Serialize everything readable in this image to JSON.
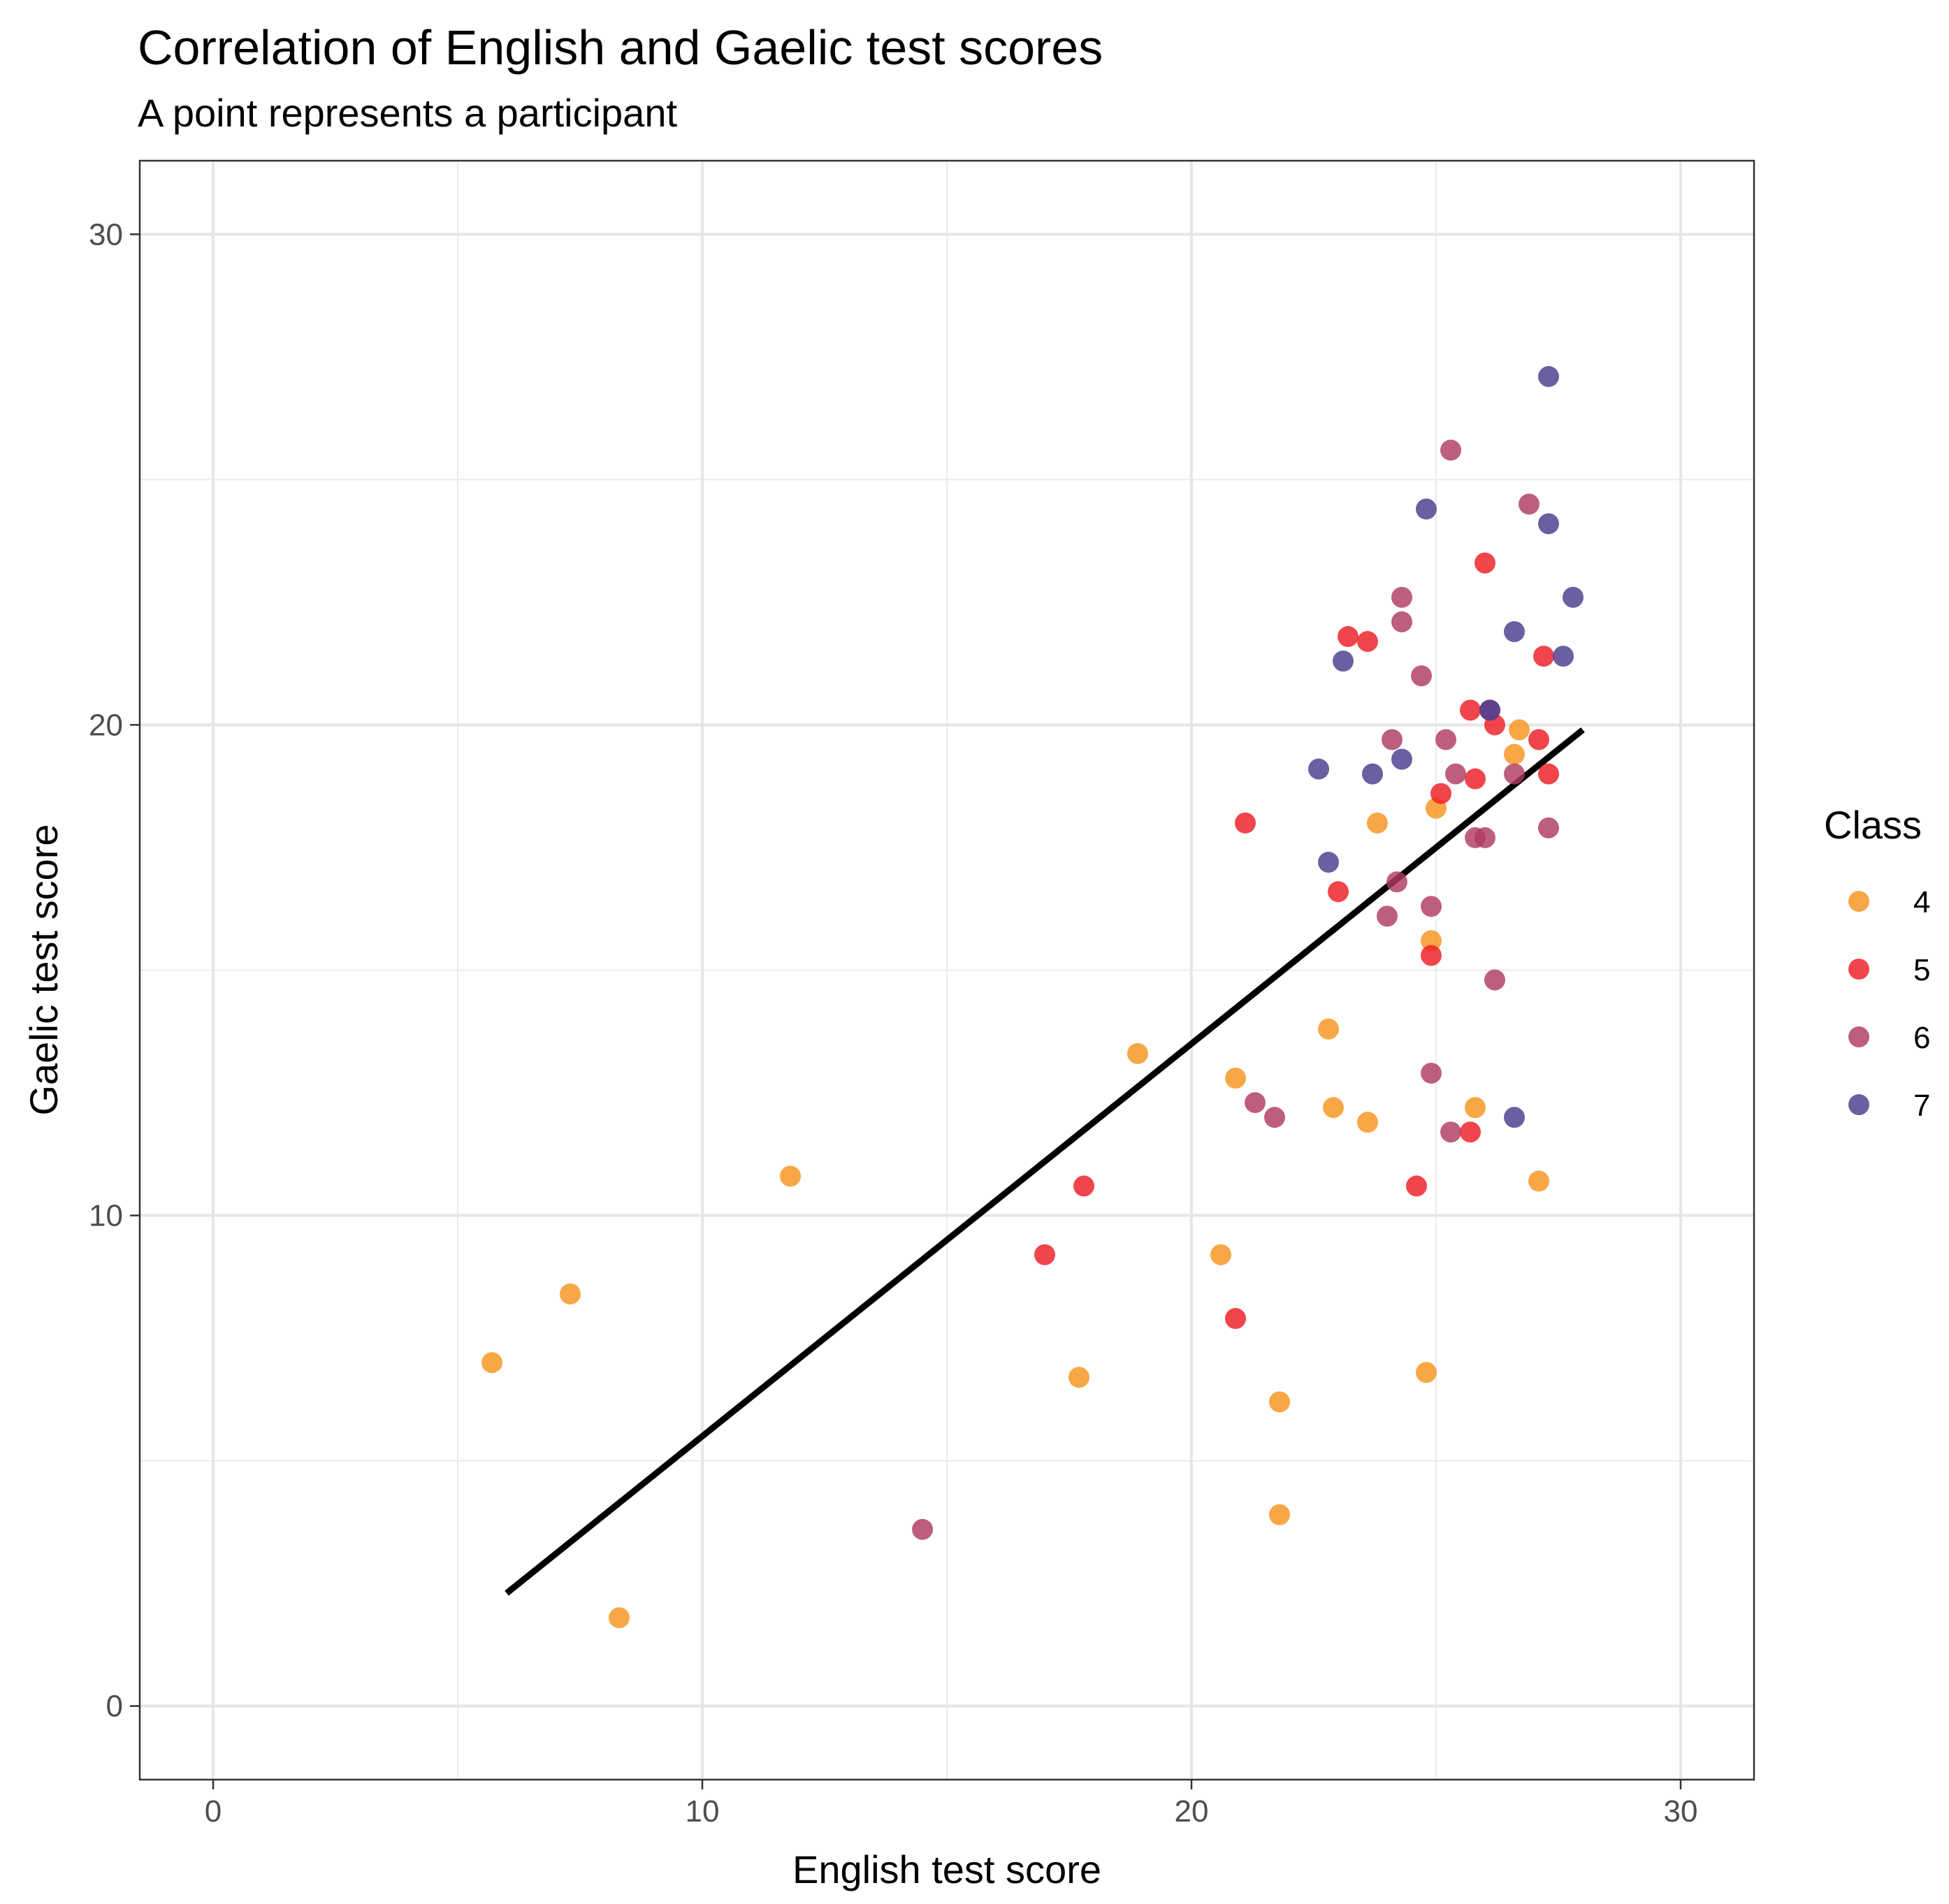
{
  "chart_data": {
    "type": "scatter",
    "title": "Correlation of English and Gaelic test scores",
    "subtitle": "A point represents a participant",
    "xlabel": "English test score",
    "ylabel": "Gaelic test score",
    "xlim": [
      -1.5,
      31.5
    ],
    "ylim": [
      -1.5,
      31.5
    ],
    "x_ticks": [
      0,
      10,
      20,
      30
    ],
    "y_ticks": [
      0,
      10,
      20,
      30
    ],
    "x_tick_labels": [
      "0",
      "10",
      "20",
      "30"
    ],
    "y_tick_labels": [
      "0",
      "10",
      "20",
      "30"
    ],
    "grid": true,
    "legend": {
      "title": "Class",
      "position": "right",
      "entries": [
        {
          "label": "4",
          "color": "#F7941D"
        },
        {
          "label": "5",
          "color": "#EE1C25"
        },
        {
          "label": "6",
          "color": "#B03A63"
        },
        {
          "label": "7",
          "color": "#4B3C8E"
        }
      ]
    },
    "series": [
      {
        "name": "4",
        "color": "#F7941D",
        "points": [
          [
            5.7,
            7.0
          ],
          [
            7.3,
            8.4
          ],
          [
            8.3,
            1.8
          ],
          [
            11.8,
            10.8
          ],
          [
            17.7,
            6.7
          ],
          [
            18.9,
            13.3
          ],
          [
            20.6,
            9.2
          ],
          [
            20.9,
            12.8
          ],
          [
            21.8,
            6.2
          ],
          [
            21.8,
            3.9
          ],
          [
            22.8,
            13.8
          ],
          [
            22.9,
            12.2
          ],
          [
            23.6,
            11.9
          ],
          [
            23.8,
            18.0
          ],
          [
            24.8,
            6.8
          ],
          [
            24.9,
            15.6
          ],
          [
            25.0,
            18.3
          ],
          [
            25.8,
            12.2
          ],
          [
            26.6,
            19.4
          ],
          [
            26.7,
            19.9
          ],
          [
            27.1,
            10.7
          ]
        ]
      },
      {
        "name": "5",
        "color": "#EE1C25",
        "points": [
          [
            17.0,
            9.2
          ],
          [
            17.8,
            10.6
          ],
          [
            20.9,
            7.9
          ],
          [
            21.1,
            18.0
          ],
          [
            23.0,
            16.6
          ],
          [
            23.2,
            21.8
          ],
          [
            23.6,
            21.7
          ],
          [
            24.6,
            10.6
          ],
          [
            24.9,
            15.3
          ],
          [
            25.1,
            18.6
          ],
          [
            25.7,
            20.3
          ],
          [
            25.7,
            11.7
          ],
          [
            25.8,
            18.9
          ],
          [
            26.0,
            23.3
          ],
          [
            26.2,
            20.0
          ],
          [
            27.1,
            19.7
          ],
          [
            27.2,
            21.4
          ],
          [
            27.3,
            19.0
          ]
        ]
      },
      {
        "name": "6",
        "color": "#B03A63",
        "points": [
          [
            14.5,
            3.6
          ],
          [
            21.3,
            12.3
          ],
          [
            21.7,
            12.0
          ],
          [
            24.0,
            16.1
          ],
          [
            24.1,
            19.7
          ],
          [
            24.2,
            16.8
          ],
          [
            24.3,
            22.6
          ],
          [
            24.3,
            22.1
          ],
          [
            24.7,
            21.0
          ],
          [
            24.9,
            12.9
          ],
          [
            24.9,
            16.3
          ],
          [
            25.2,
            19.7
          ],
          [
            25.3,
            11.7
          ],
          [
            25.3,
            25.6
          ],
          [
            25.4,
            19.0
          ],
          [
            25.8,
            17.7
          ],
          [
            26.0,
            17.7
          ],
          [
            26.1,
            20.3
          ],
          [
            26.2,
            14.8
          ],
          [
            26.6,
            19.0
          ],
          [
            26.9,
            24.5
          ],
          [
            27.3,
            17.9
          ]
        ]
      },
      {
        "name": "7",
        "color": "#4B3C8E",
        "points": [
          [
            22.6,
            19.1
          ],
          [
            22.8,
            17.2
          ],
          [
            23.1,
            21.3
          ],
          [
            23.7,
            19.0
          ],
          [
            24.3,
            19.3
          ],
          [
            24.8,
            24.4
          ],
          [
            26.1,
            20.3
          ],
          [
            26.6,
            21.9
          ],
          [
            26.6,
            12.0
          ],
          [
            27.3,
            27.1
          ],
          [
            27.3,
            24.1
          ],
          [
            27.6,
            21.4
          ],
          [
            27.8,
            22.6
          ]
        ]
      }
    ],
    "fit_line": {
      "type": "linear",
      "color": "#000000",
      "points": [
        [
          6.0,
          2.3
        ],
        [
          28.0,
          19.9
        ]
      ]
    }
  }
}
